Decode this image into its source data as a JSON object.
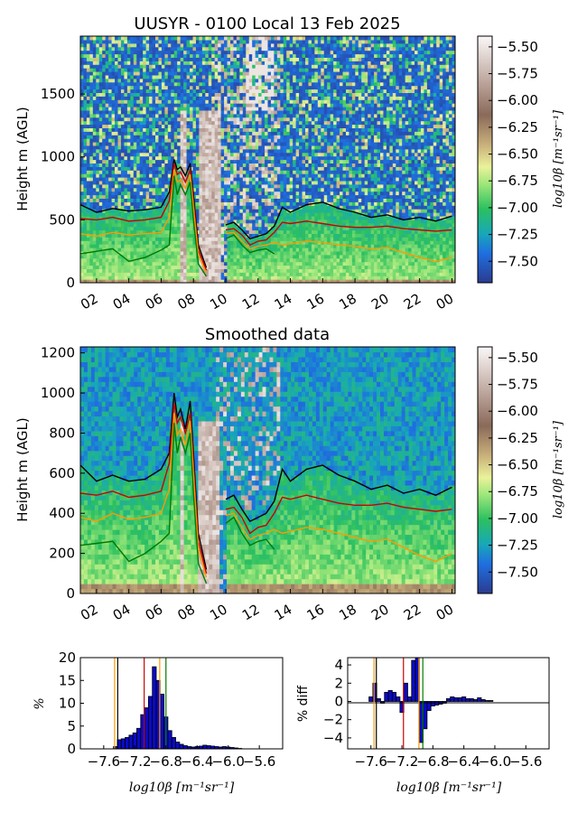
{
  "chart_data": [
    {
      "type": "heatmap",
      "title": "UUSYR - 0100 Local 13 Feb 2025",
      "ylabel": "Height m (AGL)",
      "xticks": [
        "02",
        "04",
        "06",
        "08",
        "10",
        "12",
        "14",
        "16",
        "18",
        "20",
        "22",
        "00"
      ],
      "yticks": [
        "0",
        "500",
        "1000",
        "1500"
      ],
      "ylim": [
        0,
        1960
      ],
      "colorbar": {
        "label": "log10β [m⁻¹sr⁻¹]",
        "ticks": [
          "-5.50",
          "-5.75",
          "-6.00",
          "-6.25",
          "-6.50",
          "-6.75",
          "-7.00",
          "-7.25",
          "-7.50"
        ],
        "range": [
          -7.7,
          -5.4
        ]
      },
      "x_hours": [
        1,
        2,
        3,
        4,
        5,
        6,
        6.5,
        6.8,
        7,
        7.2,
        7.5,
        7.8,
        8,
        8.3,
        8.8,
        9.5,
        10,
        10.5,
        11,
        11.5,
        12,
        12.5,
        13,
        13.5,
        14,
        15,
        16,
        17,
        18,
        19,
        20,
        21,
        22,
        23,
        24
      ],
      "series": [
        {
          "color": "#000000",
          "values": [
            620,
            560,
            590,
            570,
            580,
            600,
            720,
            980,
            900,
            920,
            850,
            950,
            700,
            300,
            120,
            null,
            460,
            480,
            420,
            350,
            370,
            390,
            450,
            600,
            560,
            620,
            640,
            590,
            560,
            520,
            540,
            500,
            520,
            490,
            530
          ]
        },
        {
          "color": "#cc0000",
          "values": [
            510,
            500,
            520,
            490,
            500,
            520,
            650,
            950,
            860,
            880,
            800,
            900,
            650,
            260,
            100,
            null,
            420,
            430,
            380,
            300,
            330,
            340,
            400,
            480,
            470,
            490,
            470,
            450,
            440,
            440,
            450,
            430,
            420,
            410,
            420
          ]
        },
        {
          "color": "#ff9900",
          "values": [
            390,
            370,
            400,
            380,
            390,
            400,
            520,
            900,
            800,
            820,
            750,
            860,
            600,
            220,
            80,
            null,
            390,
            400,
            330,
            270,
            290,
            300,
            320,
            300,
            310,
            330,
            320,
            300,
            290,
            270,
            280,
            240,
            200,
            170,
            200
          ]
        },
        {
          "color": "#007a00",
          "values": [
            230,
            250,
            270,
            170,
            200,
            260,
            300,
            850,
            700,
            780,
            700,
            800,
            500,
            150,
            50,
            null,
            350,
            380,
            300,
            240,
            260,
            270,
            230,
            null,
            null,
            null,
            null,
            null,
            null,
            null,
            null,
            null,
            null,
            null,
            null
          ]
        }
      ]
    },
    {
      "type": "heatmap",
      "title": "Smoothed data",
      "ylabel": "Height m (AGL)",
      "xticks": [
        "02",
        "04",
        "06",
        "08",
        "10",
        "12",
        "14",
        "16",
        "18",
        "20",
        "22",
        "00"
      ],
      "yticks": [
        "0",
        "200",
        "400",
        "600",
        "800",
        "1000",
        "1200"
      ],
      "ylim": [
        0,
        1230
      ],
      "colorbar": {
        "label": "log10β [m⁻¹sr⁻¹]",
        "ticks": [
          "-5.50",
          "-5.75",
          "-6.00",
          "-6.25",
          "-6.50",
          "-6.75",
          "-7.00",
          "-7.25",
          "-7.50"
        ],
        "range": [
          -7.7,
          -5.4
        ]
      },
      "x_hours": [
        1,
        2,
        3,
        4,
        5,
        6,
        6.5,
        6.8,
        7,
        7.2,
        7.5,
        7.8,
        8,
        8.3,
        8.8,
        9.5,
        10,
        10.5,
        11,
        11.5,
        12,
        12.5,
        13,
        13.5,
        14,
        15,
        16,
        17,
        18,
        19,
        20,
        21,
        22,
        23,
        24
      ],
      "series": [
        {
          "color": "#000000",
          "values": [
            640,
            560,
            590,
            560,
            570,
            620,
            700,
            1000,
            880,
            920,
            820,
            960,
            700,
            300,
            120,
            null,
            470,
            490,
            420,
            360,
            380,
            400,
            460,
            620,
            560,
            620,
            640,
            590,
            560,
            520,
            540,
            500,
            520,
            490,
            530
          ]
        },
        {
          "color": "#cc0000",
          "values": [
            500,
            490,
            510,
            480,
            490,
            510,
            650,
            950,
            850,
            880,
            800,
            900,
            650,
            260,
            100,
            null,
            420,
            430,
            380,
            300,
            330,
            340,
            400,
            480,
            470,
            490,
            470,
            450,
            440,
            440,
            450,
            430,
            420,
            410,
            420
          ]
        },
        {
          "color": "#ff9900",
          "values": [
            380,
            360,
            400,
            370,
            380,
            400,
            520,
            900,
            790,
            820,
            740,
            860,
            600,
            220,
            80,
            null,
            390,
            400,
            330,
            270,
            290,
            300,
            320,
            300,
            310,
            330,
            320,
            300,
            280,
            260,
            270,
            230,
            190,
            160,
            200
          ]
        },
        {
          "color": "#007a00",
          "values": [
            240,
            250,
            260,
            160,
            200,
            260,
            300,
            850,
            700,
            780,
            700,
            800,
            500,
            150,
            50,
            null,
            350,
            380,
            300,
            240,
            260,
            270,
            220,
            null,
            null,
            null,
            null,
            null,
            null,
            null,
            null,
            null,
            null,
            null,
            null
          ]
        }
      ]
    },
    {
      "type": "bar",
      "ylabel": "%",
      "xlabel": "log10β [m⁻¹sr⁻¹]",
      "xticks": [
        "-7.6",
        "-7.2",
        "-6.8",
        "-6.4",
        "-6.0",
        "-5.6"
      ],
      "xlim": [
        -7.9,
        -5.3
      ],
      "yticks": [
        "0",
        "5",
        "10",
        "15",
        "20"
      ],
      "ylim": [
        0,
        20
      ],
      "bin_width": 0.05,
      "x": [
        -7.45,
        -7.4,
        -7.35,
        -7.3,
        -7.25,
        -7.2,
        -7.15,
        -7.1,
        -7.05,
        -7.0,
        -6.95,
        -6.9,
        -6.85,
        -6.8,
        -6.75,
        -6.7,
        -6.65,
        -6.6,
        -6.55,
        -6.5,
        -6.45,
        -6.4,
        -6.35,
        -6.3,
        -6.25,
        -6.2,
        -6.15,
        -6.1,
        -6.05,
        -6.0,
        -5.95,
        -5.9,
        -5.85
      ],
      "values": [
        0.5,
        2.0,
        2.2,
        2.5,
        3.0,
        3.5,
        4.5,
        7.5,
        9.0,
        11.5,
        18.0,
        15.0,
        12.0,
        7.0,
        4.0,
        2.5,
        1.5,
        1.0,
        0.7,
        0.5,
        0.4,
        0.5,
        0.6,
        0.8,
        0.7,
        0.6,
        0.5,
        0.4,
        0.5,
        0.4,
        0.3,
        0.2,
        0.1
      ],
      "vlines": [
        {
          "x": -7.46,
          "color": "#ff9900"
        },
        {
          "x": -7.42,
          "color": "#000000"
        },
        {
          "x": -7.08,
          "color": "#cc0000"
        },
        {
          "x": -6.88,
          "color": "#ff9900"
        },
        {
          "x": -6.8,
          "color": "#007a00"
        }
      ]
    },
    {
      "type": "bar",
      "ylabel": "% diff",
      "xlabel": "log10β [m⁻¹sr⁻¹]",
      "xticks": [
        "-7.6",
        "-7.2",
        "-6.8",
        "-6.4",
        "-6.0",
        "-5.6"
      ],
      "xlim": [
        -7.9,
        -5.3
      ],
      "yticks": [
        "4",
        "2",
        "0",
        "-2",
        "-4"
      ],
      "ylim": [
        -5.2,
        4.8
      ],
      "bin_width": 0.05,
      "x": [
        -7.6,
        -7.55,
        -7.5,
        -7.45,
        -7.4,
        -7.35,
        -7.3,
        -7.25,
        -7.2,
        -7.15,
        -7.1,
        -7.05,
        -7.0,
        -6.95,
        -6.9,
        -6.85,
        -6.8,
        -6.75,
        -6.7,
        -6.65,
        -6.6,
        -6.55,
        -6.5,
        -6.45,
        -6.4,
        -6.35,
        -6.3,
        -6.25,
        -6.2,
        -6.15,
        -6.1,
        -6.05,
        -6.0,
        -5.95,
        -5.9,
        -5.85
      ],
      "values": [
        0.5,
        2.0,
        0.3,
        -0.2,
        1.0,
        1.2,
        1.0,
        0.5,
        -1.2,
        2.0,
        0.5,
        4.5,
        4.8,
        -4.5,
        -3.0,
        -1.0,
        -0.5,
        -0.4,
        -0.3,
        -0.2,
        0.3,
        0.5,
        0.4,
        0.4,
        0.5,
        0.3,
        0.3,
        0.2,
        0.4,
        0.2,
        0.1,
        0.1,
        0.0,
        0.0,
        0.0,
        0.0
      ],
      "vlines": [
        {
          "x": -7.56,
          "color": "#ff9900"
        },
        {
          "x": -7.53,
          "color": "#000000"
        },
        {
          "x": -7.18,
          "color": "#cc0000"
        },
        {
          "x": -6.98,
          "color": "#ff9900"
        },
        {
          "x": -6.93,
          "color": "#007a00"
        }
      ]
    }
  ]
}
